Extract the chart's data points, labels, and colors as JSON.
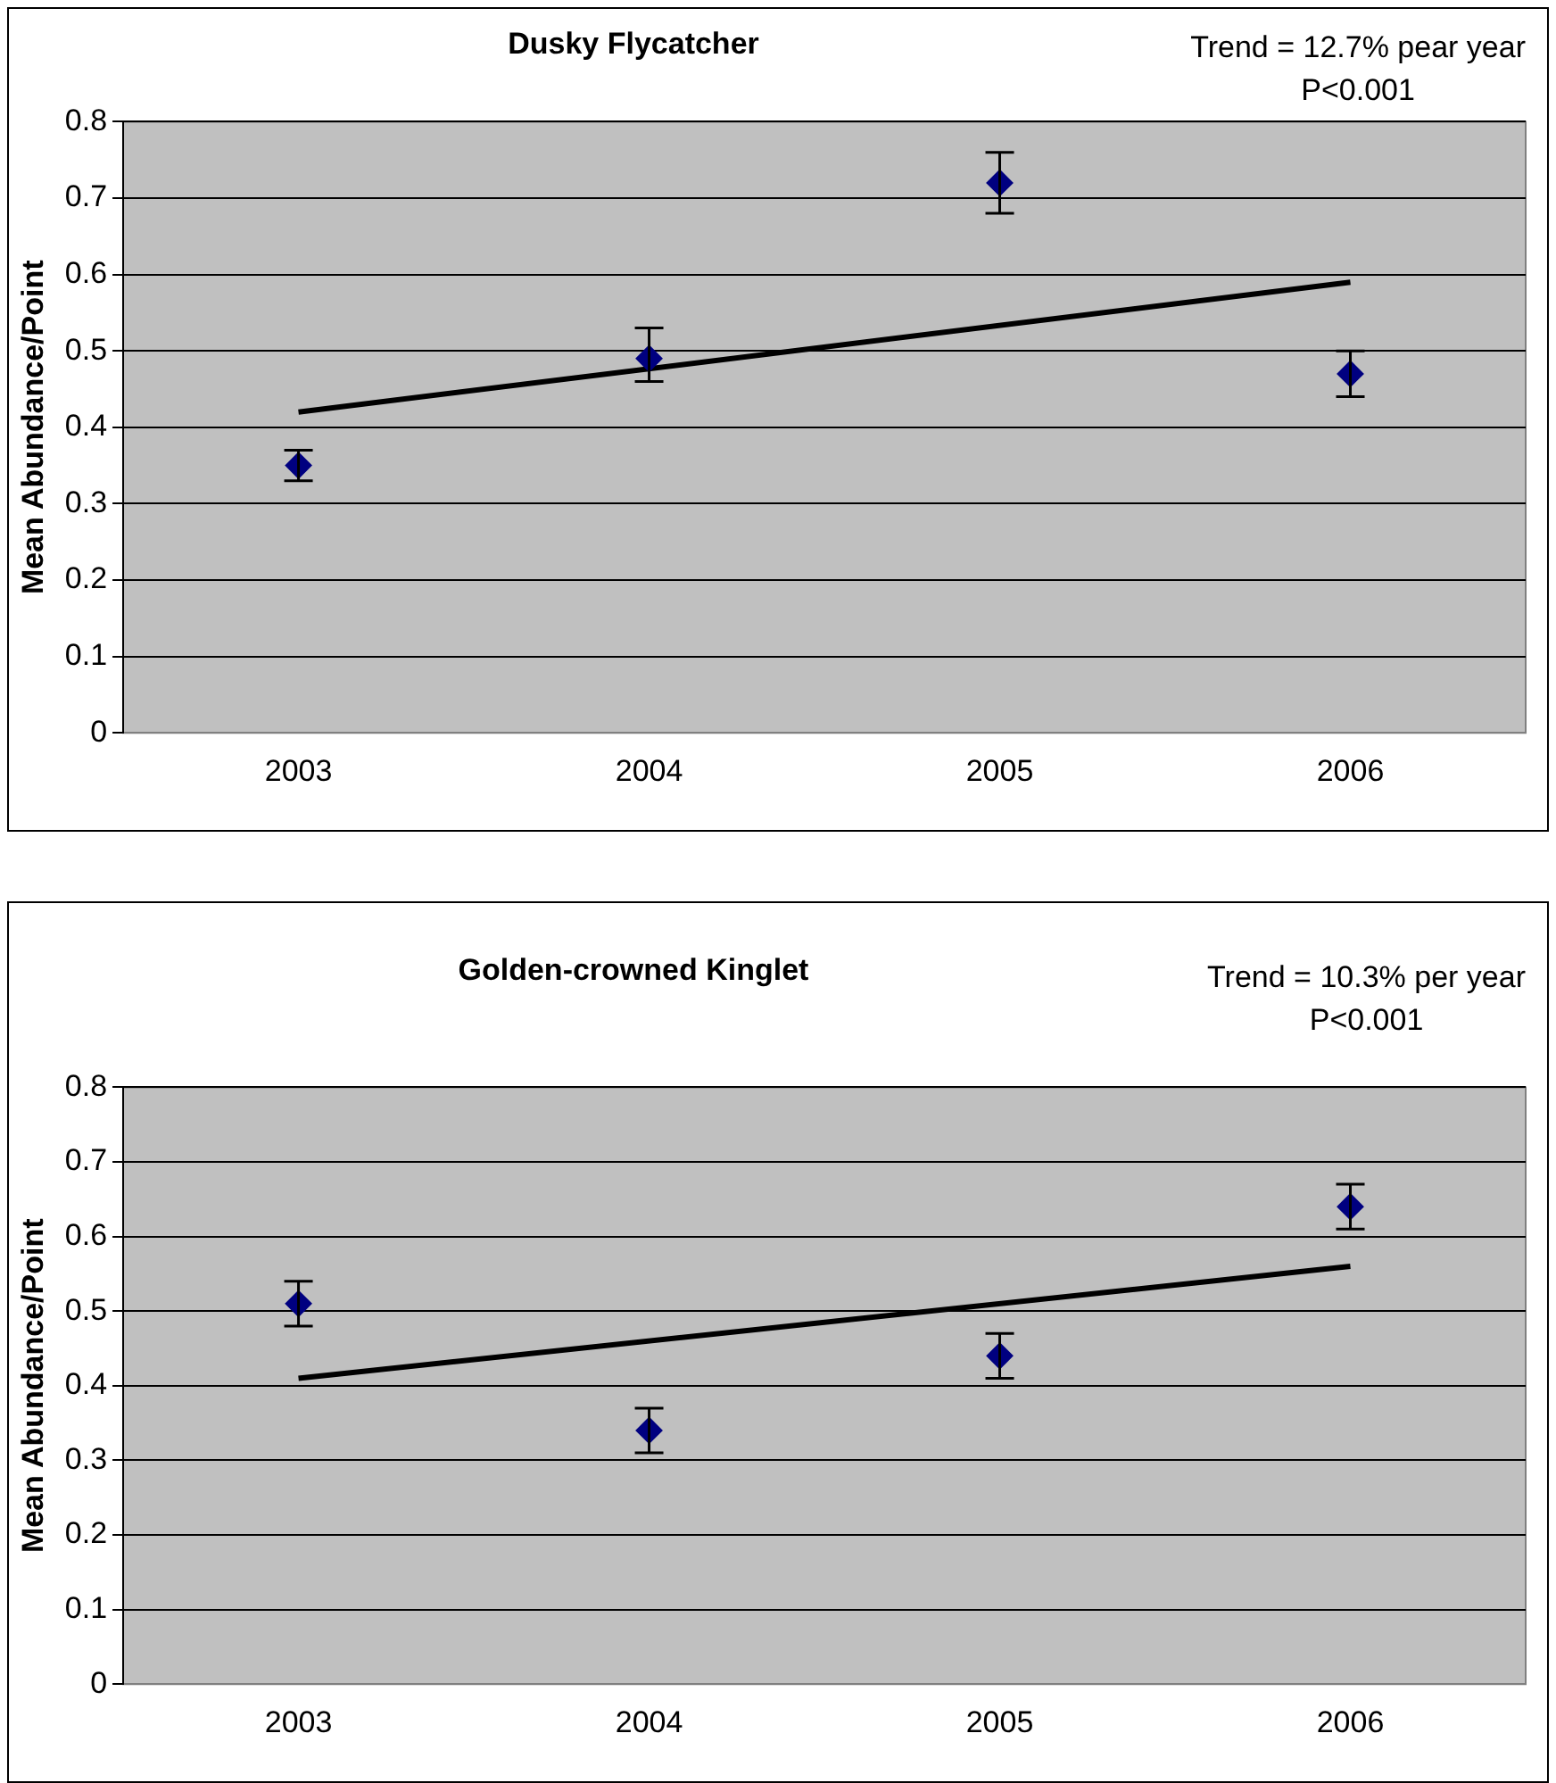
{
  "chart_data": [
    {
      "type": "scatter",
      "title": "Dusky Flycatcher",
      "ylabel": "Mean Abundance/Point",
      "annotations": [
        "Trend = 12.7% pear year",
        "P<0.001"
      ],
      "categories": [
        "2003",
        "2004",
        "2005",
        "2006"
      ],
      "ylim": [
        0,
        0.8
      ],
      "yticks": [
        0,
        0.1,
        0.2,
        0.3,
        0.4,
        0.5,
        0.6,
        0.7,
        0.8
      ],
      "grid": "y",
      "series": [
        {
          "color": "#000080",
          "marker": "diamond",
          "values": [
            0.35,
            0.49,
            0.72,
            0.47
          ],
          "errors": [
            [
              0.33,
              0.37
            ],
            [
              0.46,
              0.53
            ],
            [
              0.68,
              0.76
            ],
            [
              0.44,
              0.5
            ]
          ]
        },
        {
          "type": "line",
          "color": "#000000",
          "marker": "none",
          "values": [
            0.42,
            null,
            null,
            0.59
          ]
        }
      ]
    },
    {
      "type": "scatter",
      "title": "Golden-crowned Kinglet",
      "ylabel": "Mean Abundance/Point",
      "annotations": [
        "Trend = 10.3% per year",
        "P<0.001"
      ],
      "categories": [
        "2003",
        "2004",
        "2005",
        "2006"
      ],
      "ylim": [
        0,
        0.8
      ],
      "yticks": [
        0,
        0.1,
        0.2,
        0.3,
        0.4,
        0.5,
        0.6,
        0.7,
        0.8
      ],
      "grid": "y",
      "series": [
        {
          "color": "#000080",
          "marker": "diamond",
          "values": [
            0.51,
            0.34,
            0.44,
            0.64
          ],
          "errors": [
            [
              0.48,
              0.54
            ],
            [
              0.31,
              0.37
            ],
            [
              0.41,
              0.47
            ],
            [
              0.61,
              0.67
            ]
          ]
        },
        {
          "type": "line",
          "color": "#000000",
          "marker": "none",
          "values": [
            0.41,
            null,
            null,
            0.56
          ]
        }
      ]
    }
  ]
}
